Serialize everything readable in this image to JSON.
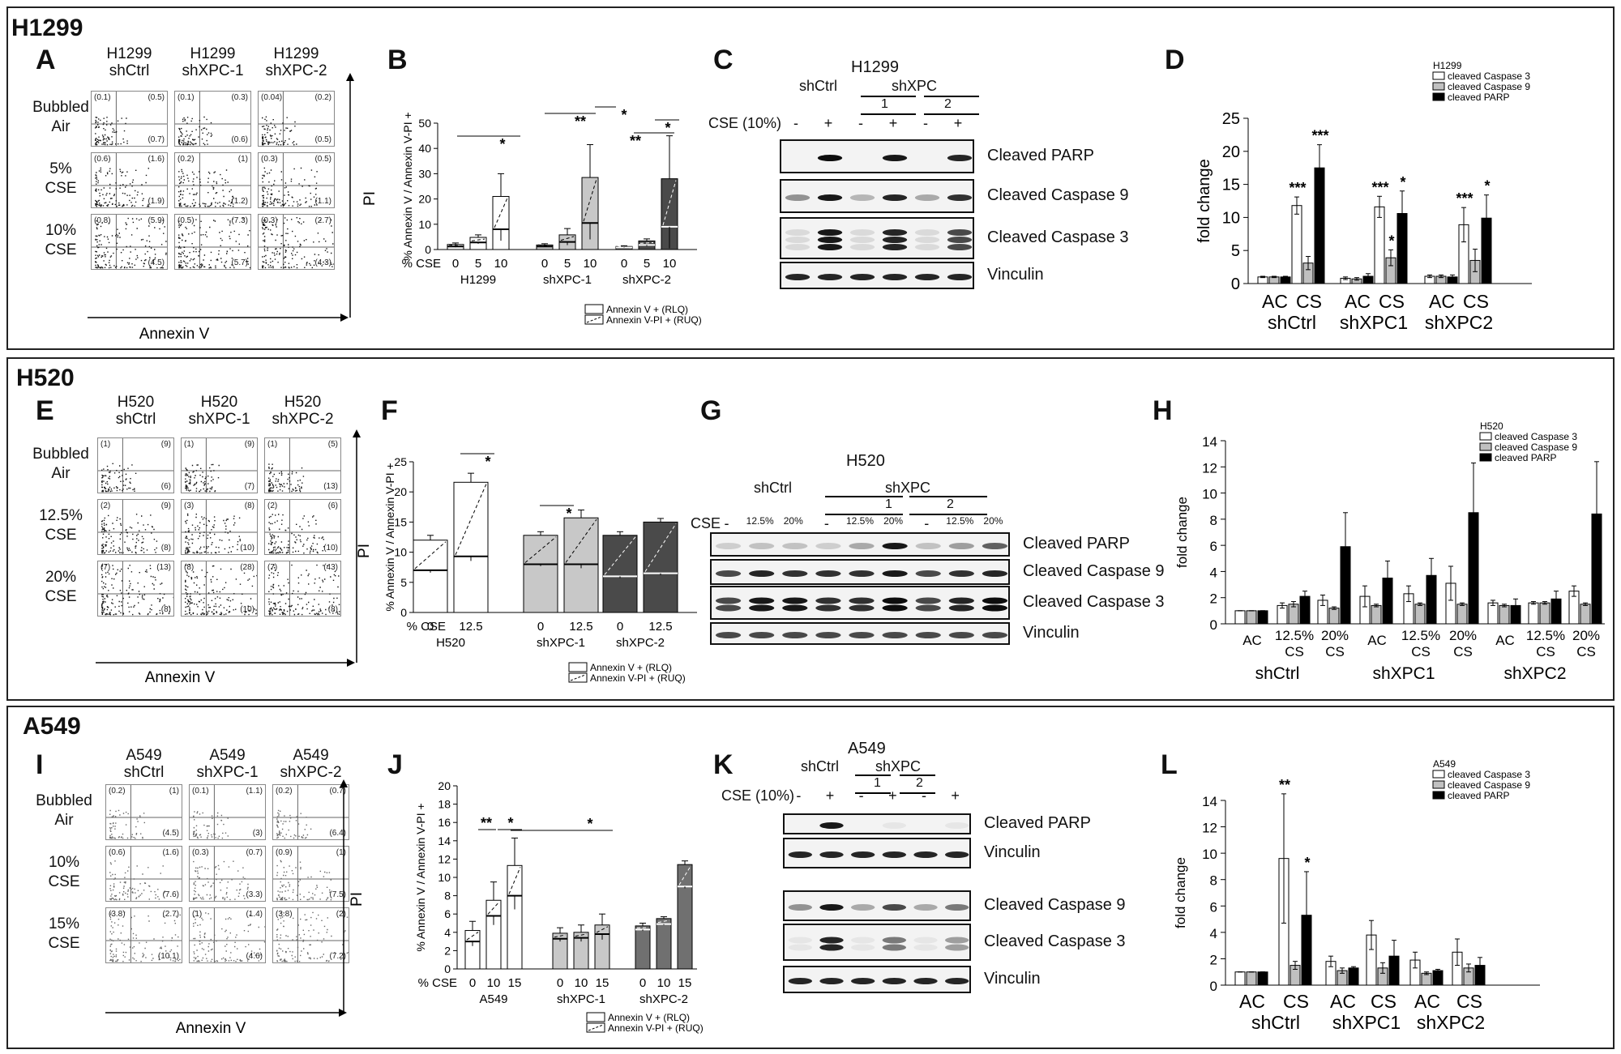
{
  "sections": [
    {
      "id": "h1299",
      "title": "H1299"
    },
    {
      "id": "h520",
      "title": "H520"
    },
    {
      "id": "a549",
      "title": "A549"
    }
  ],
  "labels": {
    "A": "A",
    "B": "B",
    "C": "C",
    "D": "D",
    "E": "E",
    "F": "F",
    "G": "G",
    "H": "H",
    "I": "I",
    "J": "J",
    "K": "K",
    "L": "L"
  },
  "flow": {
    "A": {
      "cols": [
        [
          "H1299",
          "shCtrl"
        ],
        [
          "H1299",
          "shXPC-1"
        ],
        [
          "H1299",
          "shXPC-2"
        ]
      ],
      "rows": [
        [
          "Bubbled",
          "Air"
        ],
        [
          "5%",
          "CSE"
        ],
        [
          "10%",
          "CSE"
        ]
      ],
      "quads": [
        [
          [
            "(0.1)",
            "(0.5)",
            "(0.7)"
          ],
          [
            "(0.1)",
            "(0.3)",
            "(0.6)"
          ],
          [
            "(0.04)",
            "(0.2)",
            "(0.5)"
          ]
        ],
        [
          [
            "(0.6)",
            "(1.6)",
            "(1.9)"
          ],
          [
            "(0.2)",
            "(1)",
            "(1.2)"
          ],
          [
            "(0.3)",
            "(0.5)",
            "(1.1)"
          ]
        ],
        [
          [
            "(0.8)",
            "(5.9)",
            "(4.5)"
          ],
          [
            "(0.5)",
            "(7.3)",
            "(5.7)"
          ],
          [
            "(0.3)",
            "(2.7)",
            "(4.3)"
          ]
        ]
      ],
      "xlabel": "Annexin V",
      "ylabel": "PI"
    },
    "E": {
      "cols": [
        [
          "H520",
          "shCtrl"
        ],
        [
          "H520",
          "shXPC-1"
        ],
        [
          "H520",
          "shXPC-2"
        ]
      ],
      "rows": [
        [
          "Bubbled",
          "Air"
        ],
        [
          "12.5%",
          "CSE"
        ],
        [
          "20%",
          "CSE"
        ]
      ],
      "quads": [
        [
          [
            "(1)",
            "(9)",
            "(6)"
          ],
          [
            "(1)",
            "(9)",
            "(7)"
          ],
          [
            "(1)",
            "(5)",
            "(13)"
          ]
        ],
        [
          [
            "(2)",
            "(9)",
            "(8)"
          ],
          [
            "(3)",
            "(8)",
            "(10)"
          ],
          [
            "(2)",
            "(6)",
            "(10)"
          ]
        ],
        [
          [
            "(7)",
            "(13)",
            "(8)"
          ],
          [
            "(8)",
            "(28)",
            "(10)"
          ],
          [
            "(7)",
            "(43)",
            "(8)"
          ]
        ]
      ],
      "xlabel": "Annexin V",
      "ylabel": "PI"
    },
    "I": {
      "cols": [
        [
          "A549",
          "shCtrl"
        ],
        [
          "A549",
          "shXPC-1"
        ],
        [
          "A549",
          "shXPC-2"
        ]
      ],
      "rows": [
        [
          "Bubbled",
          "Air"
        ],
        [
          "10%",
          "CSE"
        ],
        [
          "15%",
          "CSE"
        ]
      ],
      "quads": [
        [
          [
            "(0.2)",
            "(1)",
            "(4.5)"
          ],
          [
            "(0.1)",
            "(1.1)",
            "(3)"
          ],
          [
            "(0.2)",
            "(0.7)",
            "(6.4)"
          ]
        ],
        [
          [
            "(0.6)",
            "(1.6)",
            "(7.6)"
          ],
          [
            "(0.3)",
            "(0.7)",
            "(3.3)"
          ],
          [
            "(0.9)",
            "(1)",
            "(7.5)"
          ]
        ],
        [
          [
            "(3.8)",
            "(2.7)",
            "(10.1)"
          ],
          [
            "(1)",
            "(1.4)",
            "(4.6)"
          ],
          [
            "(3.8)",
            "(2)",
            "(7.2)"
          ]
        ]
      ],
      "xlabel": "Annexin V",
      "ylabel": "PI"
    }
  },
  "blots": {
    "C": {
      "title": "H1299",
      "cse_label": "CSE (10%)",
      "groups": [
        "shCtrl",
        "shXPC"
      ],
      "sub": [
        "1",
        "2"
      ],
      "lanes": [
        "-",
        "+",
        "-",
        "+",
        "-",
        "+"
      ],
      "bands": [
        "Cleaved PARP",
        "Cleaved Caspase 9",
        "Cleaved Caspase 3",
        "Vinculin"
      ]
    },
    "G": {
      "title": "H520",
      "cse_label": "CSE",
      "groups": [
        "shCtrl",
        "shXPC"
      ],
      "sub": [
        "1",
        "2"
      ],
      "lanes": [
        "-",
        "12.5%",
        "20%",
        "-",
        "12.5%",
        "20%",
        "-",
        "12.5%",
        "20%"
      ],
      "bands": [
        "Cleaved PARP",
        "Cleaved Caspase 9",
        "Cleaved Caspase 3",
        "Vinculin"
      ]
    },
    "K": {
      "title": "A549",
      "cse_label": "CSE (10%)",
      "groups": [
        "shCtrl",
        "shXPC"
      ],
      "sub": [
        "1",
        "2"
      ],
      "lanes": [
        "-",
        "+",
        "-",
        "+",
        "-",
        "+"
      ],
      "bands": [
        "Cleaved PARP",
        "Vinculin",
        "Cleaved Caspase 9",
        "Cleaved Caspase 3",
        "Vinculin"
      ]
    }
  },
  "chart_data": [
    {
      "panel": "B",
      "type": "bar",
      "stacked": true,
      "ylabel": "% Annexin V / Annexin V-PI +",
      "xprefix": "% CSE",
      "ylim": [
        0,
        50
      ],
      "yticks": [
        0,
        10,
        20,
        30,
        40,
        50
      ],
      "groups": [
        {
          "name": "H1299",
          "ticks": [
            "0",
            "5",
            "10"
          ]
        },
        {
          "name": "shXPC-1",
          "ticks": [
            "0",
            "5",
            "10"
          ]
        },
        {
          "name": "shXPC-2",
          "ticks": [
            "0",
            "5",
            "10"
          ]
        }
      ],
      "series": [
        {
          "name": "Annexin V + (RLQ)",
          "values": [
            [
              1.2,
              2.8,
              8
            ],
            [
              1.2,
              3,
              10.5
            ],
            [
              0.8,
              1.8,
              9
            ]
          ]
        },
        {
          "name": "Annexin V-PI + (RUQ)",
          "values": [
            [
              0.8,
              2,
              13
            ],
            [
              0.6,
              2.8,
              18
            ],
            [
              0.4,
              1.6,
              19
            ]
          ]
        }
      ],
      "errors": [
        [
          0.6,
          1,
          9
        ],
        [
          0.5,
          2.5,
          13
        ],
        [
          0.3,
          0.8,
          17
        ]
      ],
      "colors": [
        "#ffffff",
        "#c8c8c8",
        "#4a4a4a"
      ],
      "sig": [
        "*",
        "**",
        "*",
        "**",
        "*"
      ]
    },
    {
      "panel": "D",
      "type": "bar",
      "ylabel": "fold change",
      "ylim": [
        0,
        25
      ],
      "yticks": [
        0,
        5,
        10,
        15,
        20,
        25
      ],
      "legend_title": "H1299",
      "categories": [
        "AC",
        "CS",
        "AC",
        "CS",
        "AC",
        "CS"
      ],
      "groups": [
        "shCtrl",
        "shXPC1",
        "shXPC2"
      ],
      "series": [
        {
          "name": "cleaved Caspase 3",
          "color": "#ffffff",
          "values": [
            1,
            11.8,
            0.8,
            11.6,
            1.1,
            8.9
          ]
        },
        {
          "name": "cleaved Caspase 9",
          "color": "#c0c0c0",
          "values": [
            1,
            3.1,
            0.7,
            3.9,
            1.1,
            3.5
          ]
        },
        {
          "name": "cleaved PARP",
          "color": "#000000",
          "values": [
            1,
            17.5,
            1.1,
            10.6,
            1,
            9.9
          ]
        }
      ],
      "errors": [
        [
          0.1,
          1.3,
          0.2,
          1.6,
          0.2,
          2.6
        ],
        [
          0.1,
          1,
          0.2,
          1.2,
          0.2,
          1.7
        ],
        [
          0.1,
          3.5,
          0.4,
          3.4,
          0.3,
          3.5
        ]
      ],
      "sig": {
        "1": [
          "***",
          "",
          "***"
        ],
        "3": [
          "***",
          "*",
          "*"
        ],
        "5": [
          "***",
          "",
          "*"
        ]
      }
    },
    {
      "panel": "F",
      "type": "bar",
      "stacked": true,
      "ylabel": "% Annexin V / Annexin V-PI +",
      "xprefix": "% CSE",
      "ylim": [
        0,
        25
      ],
      "yticks": [
        0,
        5,
        10,
        15,
        20,
        25
      ],
      "groups": [
        {
          "name": "H520",
          "ticks": [
            "0",
            "12.5"
          ]
        },
        {
          "name": "shXPC-1",
          "ticks": [
            "0",
            "12.5"
          ]
        },
        {
          "name": "shXPC-2",
          "ticks": [
            "0",
            "12.5"
          ]
        }
      ],
      "series": [
        {
          "name": "Annexin V + (RLQ)",
          "values": [
            [
              7,
              9.3
            ],
            [
              8,
              8
            ],
            [
              6,
              6.5
            ]
          ]
        },
        {
          "name": "Annexin V-PI + (RUQ)",
          "values": [
            [
              5,
              12.3
            ],
            [
              4.8,
              7.7
            ],
            [
              6.8,
              8.5
            ]
          ]
        }
      ],
      "errors": [
        [
          0.8,
          1.5
        ],
        [
          0.6,
          1.3
        ],
        [
          0.6,
          0.6
        ]
      ],
      "colors": [
        "#ffffff",
        "#c8c8c8",
        "#4a4a4a"
      ],
      "sig": [
        "*",
        "*"
      ]
    },
    {
      "panel": "H",
      "type": "bar",
      "ylabel": "fold change",
      "ylim": [
        0,
        14
      ],
      "yticks": [
        0,
        2,
        4,
        6,
        8,
        10,
        12,
        14
      ],
      "legend_title": "H520",
      "categories": [
        "AC",
        "12.5% CS",
        "20% CS",
        "AC",
        "12.5% CS",
        "20% CS",
        "AC",
        "12.5% CS",
        "20% CS"
      ],
      "groups": [
        "shCtrl",
        "shXPC1",
        "shXPC2"
      ],
      "series": [
        {
          "name": "cleaved Caspase 3",
          "color": "#ffffff",
          "values": [
            1,
            1.4,
            1.8,
            2.1,
            2.3,
            3.1,
            1.6,
            1.6,
            2.5
          ]
        },
        {
          "name": "cleaved Caspase 9",
          "color": "#c0c0c0",
          "values": [
            1,
            1.5,
            1.2,
            1.4,
            1.5,
            1.5,
            1.4,
            1.6,
            1.5
          ]
        },
        {
          "name": "cleaved PARP",
          "color": "#000000",
          "values": [
            1,
            2.1,
            5.9,
            3.5,
            3.7,
            8.5,
            1.4,
            1.9,
            8.4
          ]
        }
      ],
      "errors": [
        [
          0,
          0.2,
          0.4,
          0.8,
          0.6,
          1.3,
          0.2,
          0.1,
          0.4
        ],
        [
          0,
          0.2,
          0.1,
          0.1,
          0.1,
          0.1,
          0.1,
          0.1,
          0.1
        ],
        [
          0,
          0.4,
          2.6,
          1.3,
          1.3,
          3.8,
          0.5,
          0.6,
          4
        ]
      ]
    },
    {
      "panel": "J",
      "type": "bar",
      "stacked": true,
      "ylabel": "% Annexin V / Annexin V-PI +",
      "xprefix": "% CSE",
      "ylim": [
        0,
        20
      ],
      "yticks": [
        0,
        2,
        4,
        6,
        8,
        10,
        12,
        14,
        16,
        18,
        20
      ],
      "groups": [
        {
          "name": "A549",
          "ticks": [
            "0",
            "10",
            "15"
          ]
        },
        {
          "name": "shXPC-1",
          "ticks": [
            "0",
            "10",
            "15"
          ]
        },
        {
          "name": "shXPC-2",
          "ticks": [
            "0",
            "10",
            "15"
          ]
        }
      ],
      "series": [
        {
          "name": "Annexin V + (RLQ)",
          "values": [
            [
              3,
              5.8,
              8
            ],
            [
              3.3,
              3.4,
              3.8
            ],
            [
              4.3,
              4.9,
              9
            ]
          ]
        },
        {
          "name": "Annexin V-PI + (RUQ)",
          "values": [
            [
              1.2,
              1.7,
              3.3
            ],
            [
              0.6,
              0.6,
              1
            ],
            [
              0.4,
              0.6,
              2.4
            ]
          ]
        }
      ],
      "errors": [
        [
          1,
          2,
          3
        ],
        [
          0.6,
          0.8,
          1.2
        ],
        [
          0.3,
          0.2,
          0.4
        ]
      ],
      "colors": [
        "#ffffff",
        "#c8c8c8",
        "#707070"
      ],
      "sig": [
        "**",
        "*",
        "*"
      ]
    },
    {
      "panel": "L",
      "type": "bar",
      "ylabel": "fold change",
      "ylim": [
        0,
        14
      ],
      "yticks": [
        0,
        2,
        4,
        6,
        8,
        10,
        12,
        14
      ],
      "legend_title": "A549",
      "categories": [
        "AC",
        "CS",
        "AC",
        "CS",
        "AC",
        "CS"
      ],
      "groups": [
        "shCtrl",
        "shXPC1",
        "shXPC2"
      ],
      "series": [
        {
          "name": "cleaved Caspase 3",
          "color": "#ffffff",
          "values": [
            1,
            9.6,
            1.8,
            3.8,
            1.9,
            2.5
          ]
        },
        {
          "name": "cleaved Caspase 9",
          "color": "#c0c0c0",
          "values": [
            1,
            1.5,
            1.1,
            1.3,
            0.9,
            1.3
          ]
        },
        {
          "name": "cleaved PARP",
          "color": "#000000",
          "values": [
            1,
            5.3,
            1.3,
            2.2,
            1.1,
            1.5
          ]
        }
      ],
      "errors": [
        [
          0,
          4.9,
          0.4,
          1.1,
          0.6,
          1
        ],
        [
          0,
          0.3,
          0.2,
          0.4,
          0.1,
          0.3
        ],
        [
          0,
          3.3,
          0.1,
          1.2,
          0.1,
          0.6
        ]
      ],
      "sig": {
        "1": [
          "**",
          "",
          "*"
        ]
      }
    }
  ]
}
